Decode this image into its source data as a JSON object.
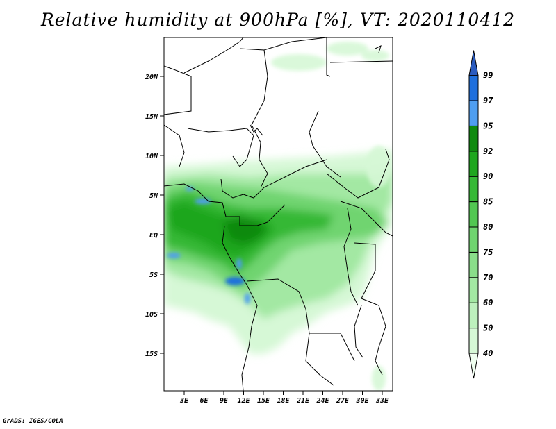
{
  "title": "Relative humidity at 900hPa [%], VT: 2020110412",
  "credit": "GrADS: IGES/COLA",
  "map": {
    "lat_labels": [
      "20N",
      "15N",
      "10N",
      "5N",
      "EQ",
      "5S",
      "10S",
      "15S"
    ],
    "lon_labels": [
      "3E",
      "6E",
      "9E",
      "12E",
      "15E",
      "18E",
      "21E",
      "24E",
      "27E",
      "30E",
      "33E"
    ]
  },
  "colorbar": {
    "levels": [
      "40",
      "50",
      "60",
      "70",
      "75",
      "80",
      "85",
      "90",
      "92",
      "95",
      "97",
      "99"
    ],
    "colors": [
      "#f0fff0",
      "#d6f8d6",
      "#bdf0bd",
      "#a3e8a3",
      "#8ade8a",
      "#6fd46f",
      "#52c752",
      "#36b836",
      "#1fa61f",
      "#0f8a0f",
      "#4f9ef0",
      "#1f6fdc",
      "#2a5bbf"
    ]
  }
}
